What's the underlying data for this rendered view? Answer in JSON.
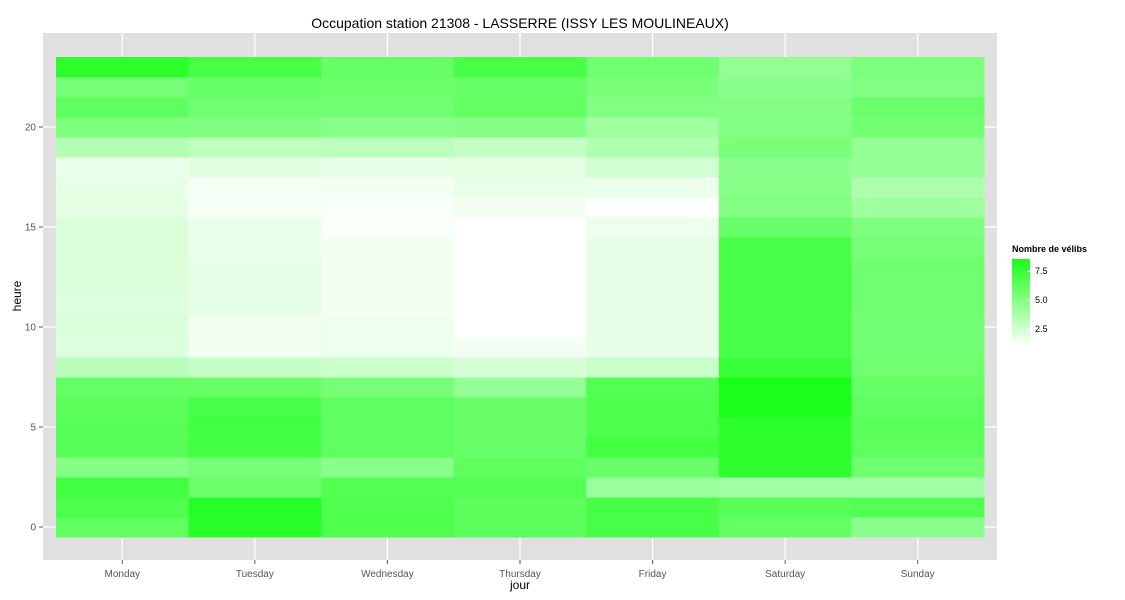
{
  "chart_data": {
    "type": "heatmap",
    "title": "Occupation station 21308 - LASSERRE (ISSY LES MOULINEAUX)",
    "xlabel": "jour",
    "ylabel": "heure",
    "x_categories": [
      "Monday",
      "Tuesday",
      "Wednesday",
      "Thursday",
      "Friday",
      "Saturday",
      "Sunday"
    ],
    "y_values": [
      0,
      1,
      2,
      3,
      4,
      5,
      6,
      7,
      8,
      9,
      10,
      11,
      12,
      13,
      14,
      15,
      16,
      17,
      18,
      19,
      20,
      21,
      22,
      23
    ],
    "y_ticks": [
      0,
      5,
      10,
      15,
      20
    ],
    "ylim": [
      -0.5,
      23.5
    ],
    "grid": true,
    "legend": {
      "title": "Nombre de vélibs",
      "position": "right",
      "ticks": [
        2.5,
        5.0,
        7.5
      ],
      "tick_labels": [
        "2.5",
        "5.0",
        "7.5"
      ],
      "min": 1.0,
      "max": 8.5,
      "low_color": "#ffffff",
      "high_color": "#1aff1a"
    },
    "values": {
      "Monday": [
        6.2,
        6.8,
        7.2,
        5.0,
        6.5,
        6.5,
        6.3,
        6.0,
        3.3,
        2.1,
        2.2,
        2.1,
        2.2,
        2.2,
        2.2,
        2.2,
        1.9,
        1.8,
        1.7,
        3.5,
        5.3,
        6.2,
        5.5,
        7.9
      ],
      "Tuesday": [
        8.0,
        8.1,
        5.8,
        5.5,
        7.2,
        7.2,
        7.0,
        6.0,
        2.9,
        1.4,
        1.4,
        1.8,
        1.8,
        1.8,
        1.7,
        1.7,
        1.3,
        1.3,
        2.0,
        3.1,
        5.2,
        5.6,
        6.0,
        7.0
      ],
      "Wednesday": [
        6.8,
        6.8,
        6.6,
        4.8,
        6.2,
        6.2,
        6.2,
        5.5,
        2.7,
        1.6,
        1.6,
        1.4,
        1.4,
        1.4,
        1.4,
        1.2,
        1.2,
        1.4,
        1.8,
        3.2,
        4.9,
        5.6,
        5.8,
        6.0
      ],
      "Thursday": [
        6.3,
        6.3,
        6.6,
        6.2,
        5.9,
        5.9,
        5.9,
        4.5,
        2.3,
        1.4,
        1.0,
        1.0,
        1.0,
        1.0,
        1.0,
        1.0,
        1.4,
        1.7,
        1.9,
        2.9,
        5.0,
        6.1,
        6.0,
        7.0
      ],
      "Friday": [
        7.0,
        7.0,
        4.3,
        5.9,
        7.2,
        6.8,
        6.8,
        6.6,
        2.8,
        1.8,
        1.8,
        1.8,
        1.8,
        1.8,
        1.8,
        1.6,
        1.1,
        1.6,
        2.5,
        3.6,
        4.1,
        5.1,
        5.4,
        5.7
      ],
      "Saturday": [
        6.1,
        6.5,
        4.0,
        7.8,
        7.9,
        7.9,
        8.4,
        8.5,
        7.5,
        7.0,
        7.0,
        7.0,
        7.0,
        7.0,
        7.0,
        5.9,
        5.1,
        4.9,
        4.8,
        5.4,
        5.1,
        5.0,
        4.8,
        4.6
      ],
      "Sunday": [
        4.8,
        6.6,
        4.0,
        5.7,
        6.2,
        6.4,
        6.2,
        6.0,
        5.7,
        5.6,
        5.6,
        5.7,
        5.7,
        5.7,
        5.5,
        5.2,
        4.2,
        3.7,
        4.4,
        4.5,
        5.6,
        5.8,
        5.1,
        5.3
      ]
    }
  }
}
